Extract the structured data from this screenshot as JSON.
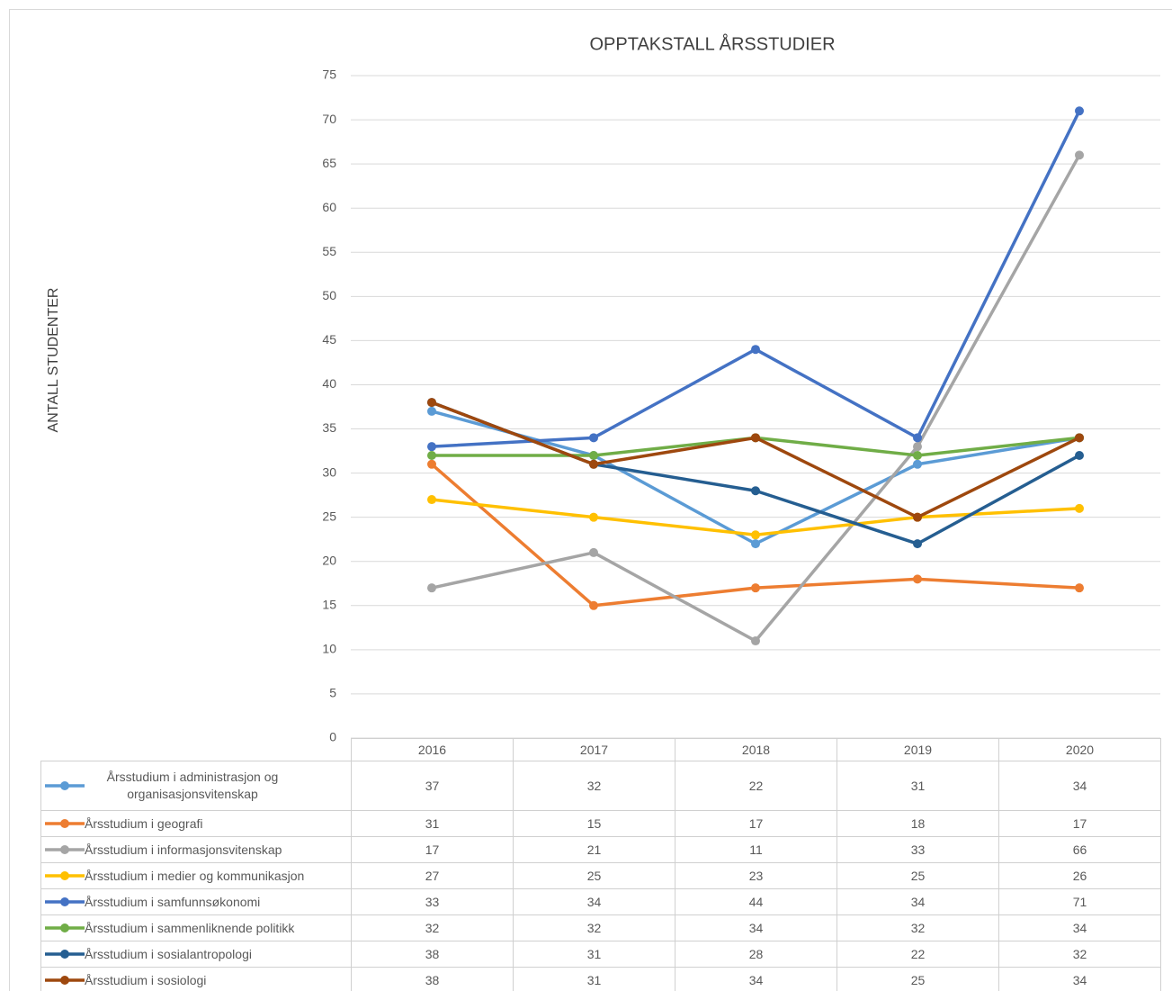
{
  "chart_data": {
    "type": "line",
    "title": "OPPTAKSTALL ÅRSSTUDIER",
    "y_label": "ANTALL STUDENTER",
    "categories": [
      "2016",
      "2017",
      "2018",
      "2019",
      "2020"
    ],
    "ylim": [
      0,
      75
    ],
    "yticks": [
      0,
      5,
      10,
      15,
      20,
      25,
      30,
      35,
      40,
      45,
      50,
      55,
      60,
      65,
      70,
      75
    ],
    "grid": true,
    "data_table": true,
    "series": [
      {
        "name": "Årsstudium i administrasjon og organisasjonsvitenskap",
        "color": "#5b9bd5",
        "values": [
          37,
          32,
          22,
          31,
          34
        ]
      },
      {
        "name": "Årsstudium i geografi",
        "color": "#ed7d31",
        "values": [
          31,
          15,
          17,
          18,
          17
        ]
      },
      {
        "name": "Årsstudium i informasjonsvitenskap",
        "color": "#a5a5a5",
        "values": [
          17,
          21,
          11,
          33,
          66
        ]
      },
      {
        "name": "Årsstudium i medier og kommunikasjon",
        "color": "#ffc000",
        "values": [
          27,
          25,
          23,
          25,
          26
        ]
      },
      {
        "name": "Årsstudium i samfunnsøkonomi",
        "color": "#4472c4",
        "values": [
          33,
          34,
          44,
          34,
          71
        ]
      },
      {
        "name": "Årsstudium i sammenliknende politikk",
        "color": "#70ad47",
        "values": [
          32,
          32,
          34,
          32,
          34
        ]
      },
      {
        "name": "Årsstudium i sosialantropologi",
        "color": "#255e91",
        "values": [
          38,
          31,
          28,
          22,
          32
        ]
      },
      {
        "name": "Årsstudium i sosiologi",
        "color": "#9e480e",
        "values": [
          38,
          31,
          34,
          25,
          34
        ]
      }
    ]
  }
}
